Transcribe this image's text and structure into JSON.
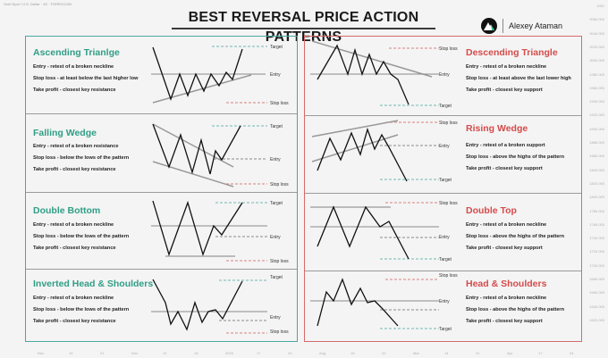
{
  "header": {
    "symbol_info": "Gold Spot / U.S. Dollar · 1D · FOREXCOM",
    "title": "BEST REVERSAL PRICE ACTION PATTERNS",
    "author": "Alexey Ataman",
    "logo_icon": "mountain-peak-icon"
  },
  "labels": {
    "target": "Target",
    "entry": "Entry",
    "stop_loss": "Stop loss"
  },
  "patterns": {
    "ascending_triangle": {
      "title": "Ascending Trianlge",
      "entry": "Entry - retest of a broken neckline",
      "stop": "Stop loss - at least below the last higher low",
      "profit": "Take profit - closest key resistance"
    },
    "falling_wedge": {
      "title": "Falling Wedge",
      "entry": "Entry - retest of a broken resistance",
      "stop": "Stop loss - below the lows of the pattern",
      "profit": "Take profit - closest key resistance"
    },
    "double_bottom": {
      "title": "Double Bottom",
      "entry": "Entry - retest of a broken neckline",
      "stop": "Stop loss - below the lows of the pattern",
      "profit": "Take profit - closest key resistance"
    },
    "inverted_head_shoulders": {
      "title": "Inverted Head & Shoulders",
      "entry": "Entry - retest of a broken neckline",
      "stop": "Stop loss - below the lows of the pattern",
      "profit": "Take profit - closest key resistance"
    },
    "descending_triangle": {
      "title": "Descending Triangle",
      "entry": "Entry - retest of a broken neckline",
      "stop": "Stop loss - at least above the last lower high",
      "profit": "Take profit - closest key support"
    },
    "rising_wedge": {
      "title": "Rising Wedge",
      "entry": "Entry - retest of a broken support",
      "stop": "Stop loss - above the highs of the pattern",
      "profit": "Take profit - closest key support"
    },
    "double_top": {
      "title": "Double Top",
      "entry": "Entry - retest of a broken neckline",
      "stop": "Stop loss - above the highs of the pattern",
      "profit": "Take profit - closest key support"
    },
    "head_shoulders": {
      "title": "Head & Shoulders",
      "entry": "Entry - retest of a broken neckline",
      "stop": "Stop loss - above the highs of the pattern",
      "profit": "Take profit - closest key support"
    }
  },
  "axis": {
    "price_ticks": [
      "USD",
      "2060.000",
      "2040.000",
      "2020.000",
      "2000.000",
      "1980.000",
      "1960.000",
      "1940.000",
      "1920.000",
      "1900.000",
      "1880.000",
      "1860.000",
      "1840.000",
      "1820.000",
      "1800.000",
      "1780.000",
      "1760.000",
      "1740.000",
      "1720.000",
      "1700.000",
      "1680.000",
      "1660.000",
      "1640.000",
      "1620.000"
    ],
    "time_ticks": [
      "Nov",
      "14",
      "21",
      "Dec",
      "12",
      "19",
      "2023",
      "17",
      "24",
      "Aug",
      "15",
      "22",
      "Mar",
      "14",
      "21",
      "Apr",
      "17",
      "24"
    ]
  },
  "colors": {
    "teal_border": "#4aa8a2",
    "red_border": "#d66a6a",
    "teal_title": "#2f9e86",
    "red_title": "#d64a4a",
    "target_line": "#6fb8b0",
    "stop_line": "#d98080",
    "entry_line": "#8a8a8a"
  }
}
